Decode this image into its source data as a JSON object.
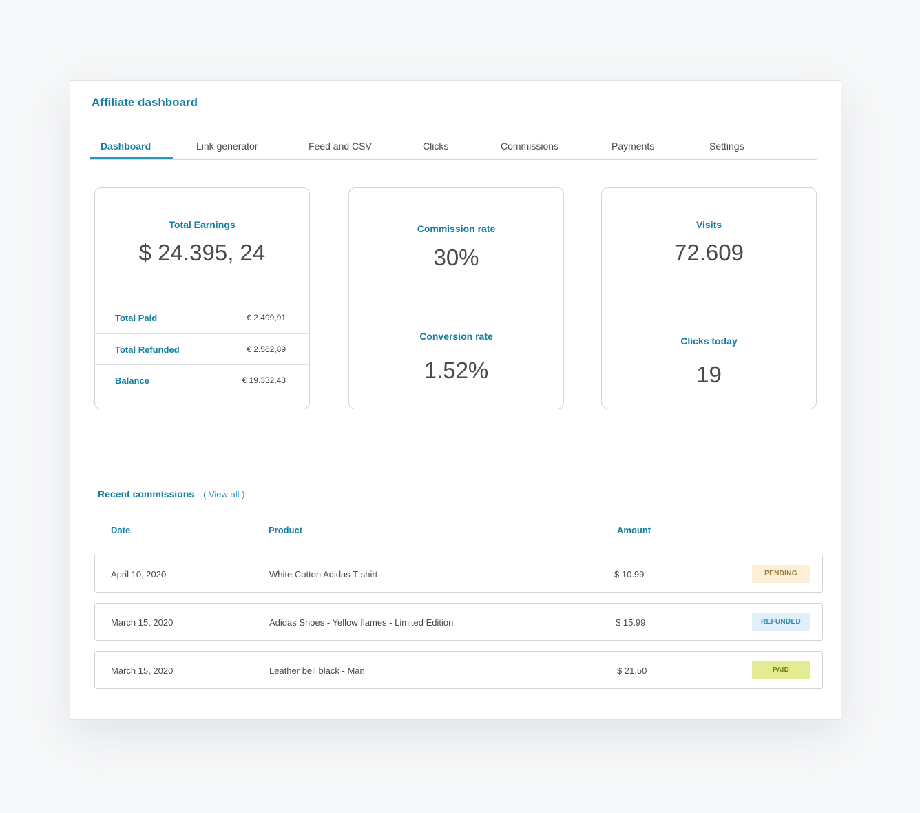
{
  "app": {
    "title": "Affiliate dashboard"
  },
  "tabs": [
    {
      "label": "Dashboard",
      "active": true
    },
    {
      "label": "Link generator"
    },
    {
      "label": "Feed and CSV"
    },
    {
      "label": "Clicks"
    },
    {
      "label": "Commissions"
    },
    {
      "label": "Payments"
    },
    {
      "label": "Settings"
    }
  ],
  "earnings": {
    "label": "Total Earnings",
    "value": "$ 24.395, 24",
    "rows": [
      {
        "label": "Total Paid",
        "value": "€ 2.499,91"
      },
      {
        "label": "Total Refunded",
        "value": "€ 2.562,89"
      },
      {
        "label": "Balance",
        "value": "€ 19.332,43"
      }
    ]
  },
  "rates": {
    "commission_label": "Commission rate",
    "commission_value": "30%",
    "conversion_label": "Conversion rate",
    "conversion_value": "1.52%"
  },
  "traffic": {
    "visits_label": "Visits",
    "visits_value": "72.609",
    "clicks_label": "Clicks today",
    "clicks_value": "19"
  },
  "recent": {
    "title": "Recent commissions",
    "view_all": "( View all )",
    "columns": {
      "date": "Date",
      "product": "Product",
      "amount": "Amount"
    },
    "rows": [
      {
        "date": "April 10, 2020",
        "product": "White Cotton Adidas T-shirt",
        "amount": "$ 10.99",
        "status": "PENDING"
      },
      {
        "date": "March 15, 2020",
        "product": "Adidas Shoes - Yellow flames - Limited Edition",
        "amount": "$ 15.99",
        "status": "REFUNDED"
      },
      {
        "date": "March 15, 2020",
        "product": "Leather bell black - Man",
        "amount": "$ 21.50",
        "status": "PAID"
      }
    ]
  },
  "colors": {
    "accent": "#137e9f",
    "tab_underline": "#2a94bd",
    "pending_bg": "#fcefd6",
    "pending_fg": "#9a7a3a",
    "refunded_bg": "#dff0fa",
    "refunded_fg": "#3b88a8",
    "paid_bg": "#e3ec93",
    "paid_fg": "#6f7d1a"
  }
}
